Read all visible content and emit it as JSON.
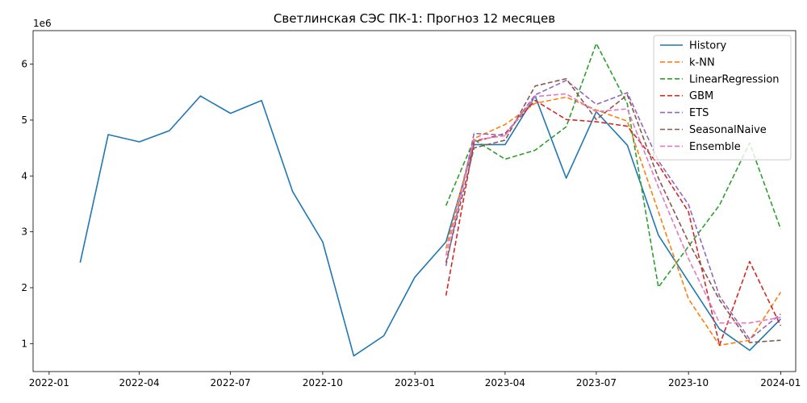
{
  "chart_data": {
    "type": "line",
    "title": "Светлинская СЭС ПК-1: Прогноз 12 месяцев",
    "xlabel": "",
    "ylabel": "",
    "y_multiplier": "1e6",
    "ylim": [
      0.5,
      6.6
    ],
    "xlim": [
      "2021-12-16",
      "2024-01-16"
    ],
    "x_ticks": [
      "2022-01-01",
      "2022-04-01",
      "2022-07-01",
      "2022-10-01",
      "2023-01-01",
      "2023-04-01",
      "2023-07-01",
      "2023-10-01",
      "2024-01-01"
    ],
    "x_tick_labels": [
      "2022-01",
      "2022-04",
      "2022-07",
      "2022-10",
      "2023-01",
      "2023-04",
      "2023-07",
      "2023-10",
      "2024-01"
    ],
    "y_ticks": [
      1,
      2,
      3,
      4,
      5,
      6
    ],
    "y_tick_labels": [
      "1",
      "2",
      "3",
      "4",
      "5",
      "6"
    ],
    "grid": false,
    "legend_position": "top-right",
    "series": [
      {
        "name": "History",
        "color": "#1f77b4",
        "dash": "solid",
        "x": [
          "2022-02-01",
          "2022-03-01",
          "2022-04-01",
          "2022-05-01",
          "2022-06-01",
          "2022-07-01",
          "2022-08-01",
          "2022-09-01",
          "2022-10-01",
          "2022-11-01",
          "2022-12-01",
          "2023-01-01",
          "2023-02-01",
          "2023-03-01",
          "2023-04-01",
          "2023-05-01",
          "2023-06-01",
          "2023-07-01",
          "2023-08-01",
          "2023-09-01",
          "2023-10-01",
          "2023-11-01",
          "2023-12-01",
          "2024-01-01"
        ],
        "values": [
          2.45,
          4.74,
          4.61,
          4.81,
          5.43,
          5.12,
          5.35,
          3.72,
          2.82,
          0.78,
          1.14,
          2.19,
          2.82,
          4.56,
          4.56,
          5.43,
          3.96,
          5.15,
          4.55,
          2.94,
          2.11,
          1.26,
          0.88,
          1.44
        ]
      },
      {
        "name": "k-NN",
        "color": "#ff7f0e",
        "dash": "dashed",
        "x": [
          "2023-02-01",
          "2023-03-01",
          "2023-04-01",
          "2023-05-01",
          "2023-06-01",
          "2023-07-01",
          "2023-08-01",
          "2023-09-01",
          "2023-10-01",
          "2023-11-01",
          "2023-12-01",
          "2024-01-01"
        ],
        "values": [
          2.7,
          4.67,
          4.92,
          5.3,
          5.41,
          5.18,
          4.98,
          3.36,
          1.8,
          0.97,
          1.06,
          1.92
        ]
      },
      {
        "name": "LinearRegression",
        "color": "#2ca02c",
        "dash": "dashed",
        "x": [
          "2023-02-01",
          "2023-03-01",
          "2023-04-01",
          "2023-05-01",
          "2023-06-01",
          "2023-07-01",
          "2023-08-01",
          "2023-09-01",
          "2023-10-01",
          "2023-11-01",
          "2023-12-01",
          "2024-01-01"
        ],
        "values": [
          3.47,
          4.65,
          4.3,
          4.46,
          4.88,
          6.37,
          5.29,
          2.01,
          2.74,
          3.48,
          4.59,
          3.05
        ]
      },
      {
        "name": "GBM",
        "color": "#d62728",
        "dash": "dashed",
        "x": [
          "2023-02-01",
          "2023-03-01",
          "2023-04-01",
          "2023-05-01",
          "2023-06-01",
          "2023-07-01",
          "2023-08-01",
          "2023-09-01",
          "2023-10-01",
          "2023-11-01",
          "2023-12-01",
          "2024-01-01"
        ],
        "values": [
          1.86,
          4.61,
          4.76,
          5.35,
          5.01,
          4.97,
          4.89,
          4.2,
          3.36,
          0.97,
          2.47,
          1.32
        ]
      },
      {
        "name": "ETS",
        "color": "#9467bd",
        "dash": "dashed",
        "x": [
          "2023-02-01",
          "2023-03-01",
          "2023-04-01",
          "2023-05-01",
          "2023-06-01",
          "2023-07-01",
          "2023-08-01",
          "2023-09-01",
          "2023-10-01",
          "2023-11-01",
          "2023-12-01",
          "2024-01-01"
        ],
        "values": [
          2.39,
          4.76,
          4.73,
          5.45,
          5.71,
          5.28,
          5.49,
          4.27,
          3.49,
          1.85,
          1.08,
          1.53
        ]
      },
      {
        "name": "SeasonalNaive",
        "color": "#8c564b",
        "dash": "dashed",
        "x": [
          "2023-02-01",
          "2023-03-01",
          "2023-04-01",
          "2023-05-01",
          "2023-06-01",
          "2023-07-01",
          "2023-08-01",
          "2023-09-01",
          "2023-10-01",
          "2023-11-01",
          "2023-12-01",
          "2024-01-01"
        ],
        "values": [
          2.45,
          4.5,
          4.64,
          5.61,
          5.74,
          5.01,
          5.45,
          3.96,
          2.82,
          1.78,
          1.02,
          1.06
        ]
      },
      {
        "name": "Ensemble",
        "color": "#e377c2",
        "dash": "dashed",
        "x": [
          "2023-02-01",
          "2023-03-01",
          "2023-04-01",
          "2023-05-01",
          "2023-06-01",
          "2023-07-01",
          "2023-08-01",
          "2023-09-01",
          "2023-10-01",
          "2023-11-01",
          "2023-12-01",
          "2024-01-01"
        ],
        "values": [
          2.58,
          4.64,
          4.72,
          5.42,
          5.47,
          5.15,
          5.2,
          3.8,
          2.52,
          1.37,
          1.37,
          1.47
        ]
      }
    ]
  }
}
